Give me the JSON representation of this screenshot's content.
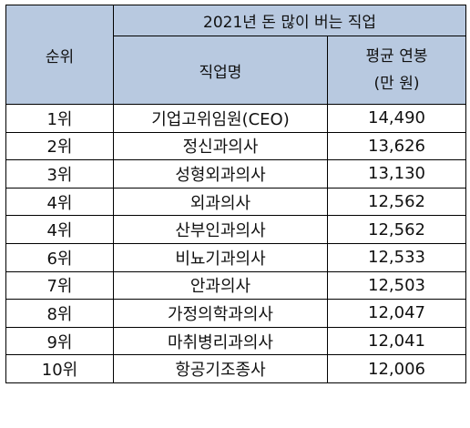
{
  "table": {
    "rank_header": "순위",
    "group_header": "2021년 돈 많이 버는 직업",
    "job_header": "직업명",
    "salary_header_line1": "평균 연봉",
    "salary_header_line2": "(만 원)",
    "rows": [
      {
        "rank": "1위",
        "job": "기업고위임원(CEO)",
        "salary": "14,490"
      },
      {
        "rank": "2위",
        "job": "정신과의사",
        "salary": "13,626"
      },
      {
        "rank": "3위",
        "job": "성형외과의사",
        "salary": "13,130"
      },
      {
        "rank": "4위",
        "job": "외과의사",
        "salary": "12,562"
      },
      {
        "rank": "4위",
        "job": "산부인과의사",
        "salary": "12,562"
      },
      {
        "rank": "6위",
        "job": "비뇨기과의사",
        "salary": "12,533"
      },
      {
        "rank": "7위",
        "job": "안과의사",
        "salary": "12,503"
      },
      {
        "rank": "8위",
        "job": "가정의학과의사",
        "salary": "12,047"
      },
      {
        "rank": "9위",
        "job": "마취병리과의사",
        "salary": "12,041"
      },
      {
        "rank": "10위",
        "job": "항공기조종사",
        "salary": "12,006"
      }
    ]
  }
}
